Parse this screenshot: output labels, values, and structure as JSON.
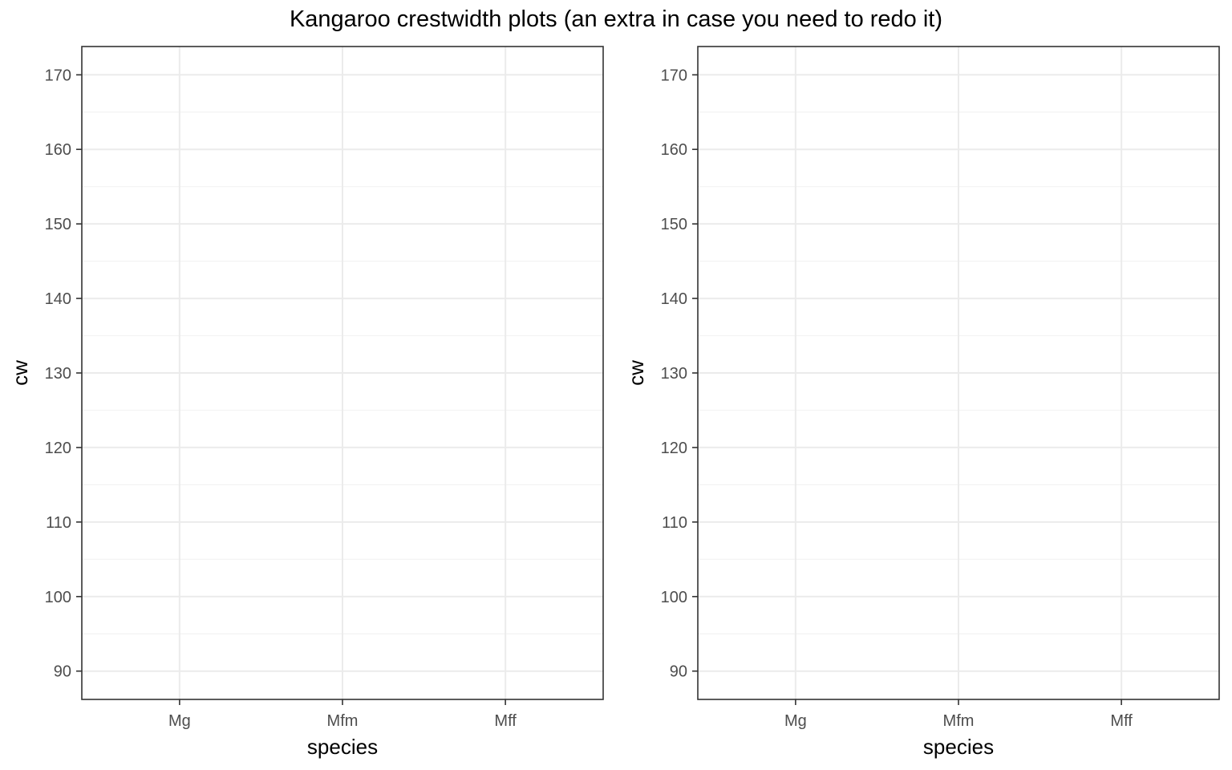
{
  "title": "Kangaroo crestwidth plots (an extra in case you need to redo it)",
  "chart_data": [
    {
      "type": "scatter",
      "xlabel": "species",
      "ylabel": "cw",
      "categories": [
        "Mg",
        "Mfm",
        "Mff"
      ],
      "ylim": [
        86.2,
        173.8
      ],
      "yticks": [
        90,
        100,
        110,
        120,
        130,
        140,
        150,
        160,
        170
      ],
      "grid": true,
      "series": []
    },
    {
      "type": "scatter",
      "xlabel": "species",
      "ylabel": "cw",
      "categories": [
        "Mg",
        "Mfm",
        "Mff"
      ],
      "ylim": [
        86.2,
        173.8
      ],
      "yticks": [
        90,
        100,
        110,
        120,
        130,
        140,
        150,
        160,
        170
      ],
      "grid": true,
      "series": []
    }
  ]
}
